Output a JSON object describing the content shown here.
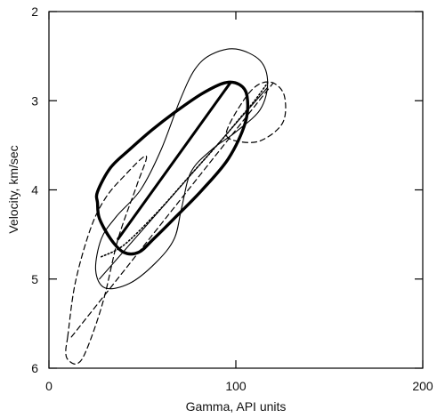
{
  "chart_data": {
    "type": "line",
    "title": "",
    "xlabel": "Gamma, API units",
    "ylabel": "Velocity, km/sec",
    "xlim": [
      0,
      200
    ],
    "ylim": [
      2,
      6
    ],
    "y_inverted": true,
    "grid": false,
    "legend": "none",
    "x_ticks": [
      0,
      100,
      200
    ],
    "y_ticks": [
      2,
      3,
      4,
      5,
      6
    ],
    "series": [
      {
        "style": "thick-solid",
        "closed": true,
        "points": [
          [
            26,
            4.15
          ],
          [
            26,
            4.02
          ],
          [
            33,
            3.75
          ],
          [
            43,
            3.55
          ],
          [
            55,
            3.33
          ],
          [
            68,
            3.12
          ],
          [
            82,
            2.92
          ],
          [
            94,
            2.8
          ],
          [
            102,
            2.82
          ],
          [
            106,
            2.95
          ],
          [
            105,
            3.25
          ],
          [
            96,
            3.65
          ],
          [
            82,
            4.0
          ],
          [
            68,
            4.3
          ],
          [
            56,
            4.55
          ],
          [
            48,
            4.7
          ],
          [
            40,
            4.7
          ],
          [
            33,
            4.55
          ],
          [
            27,
            4.32
          ]
        ]
      },
      {
        "style": "thick-solid-line",
        "closed": false,
        "points": [
          [
            37,
            4.55
          ],
          [
            97,
            2.8
          ]
        ]
      },
      {
        "style": "thin-solid",
        "closed": true,
        "points": [
          [
            28,
            4.55
          ],
          [
            36,
            4.3
          ],
          [
            49,
            4.0
          ],
          [
            60,
            3.55
          ],
          [
            70,
            3.0
          ],
          [
            78,
            2.65
          ],
          [
            87,
            2.48
          ],
          [
            100,
            2.42
          ],
          [
            113,
            2.55
          ],
          [
            117,
            2.8
          ],
          [
            113,
            3.1
          ],
          [
            100,
            3.35
          ],
          [
            87,
            3.55
          ],
          [
            76,
            3.8
          ],
          [
            71,
            4.2
          ],
          [
            67,
            4.55
          ],
          [
            57,
            4.82
          ],
          [
            43,
            5.05
          ],
          [
            30,
            5.1
          ],
          [
            25,
            4.9
          ]
        ]
      },
      {
        "style": "thin-solid-line",
        "closed": false,
        "points": [
          [
            27,
            5.0
          ],
          [
            117,
            2.85
          ]
        ]
      },
      {
        "style": "dashed",
        "closed": true,
        "points": [
          [
            10,
            5.65
          ],
          [
            14,
            5.05
          ],
          [
            22,
            4.45
          ],
          [
            30,
            4.1
          ],
          [
            40,
            3.85
          ],
          [
            52,
            3.62
          ],
          [
            47,
            3.95
          ],
          [
            37,
            4.55
          ],
          [
            29,
            5.25
          ],
          [
            20,
            5.8
          ],
          [
            15,
            5.95
          ],
          [
            10,
            5.9
          ],
          [
            9,
            5.8
          ]
        ]
      },
      {
        "style": "dashed-line",
        "closed": false,
        "points": [
          [
            12,
            5.65
          ],
          [
            120,
            2.8
          ]
        ]
      },
      {
        "style": "dashed",
        "closed": true,
        "points": [
          [
            95,
            3.35
          ],
          [
            104,
            3.0
          ],
          [
            112,
            2.82
          ],
          [
            120,
            2.8
          ],
          [
            126,
            2.95
          ],
          [
            125,
            3.25
          ],
          [
            113,
            3.45
          ],
          [
            100,
            3.45
          ]
        ]
      },
      {
        "style": "dotted",
        "closed": false,
        "points": [
          [
            28,
            4.75
          ],
          [
            40,
            4.62
          ],
          [
            58,
            4.25
          ],
          [
            75,
            3.85
          ],
          [
            92,
            3.45
          ],
          [
            102,
            3.2
          ],
          [
            110,
            3.0
          ],
          [
            117,
            2.8
          ]
        ]
      }
    ]
  }
}
